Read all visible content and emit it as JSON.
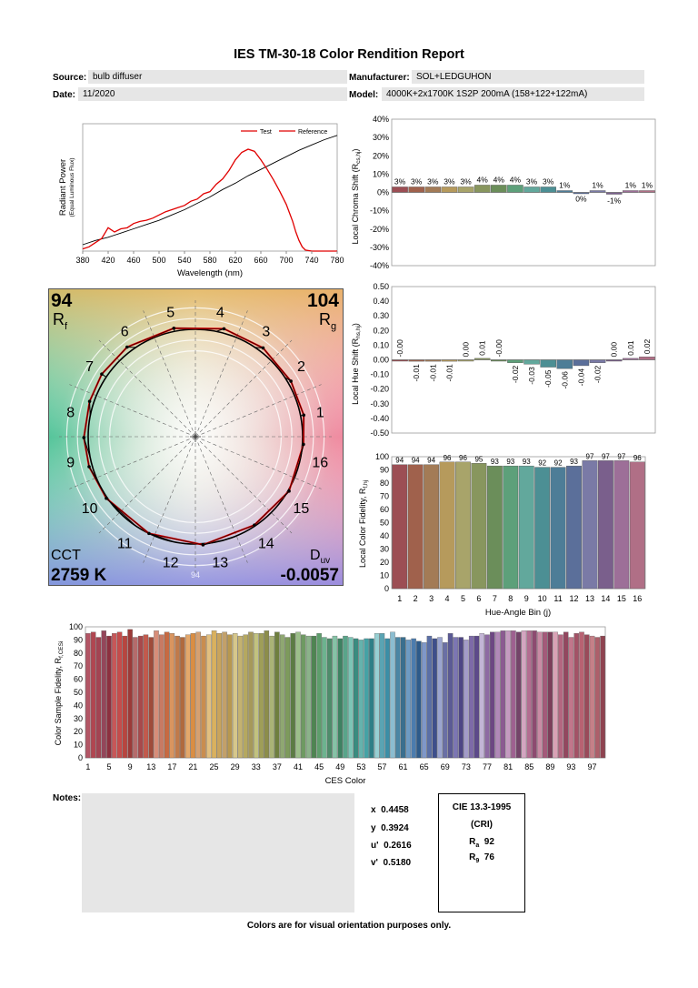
{
  "report": {
    "title": "IES TM-30-18 Color Rendition Report",
    "source_label": "Source:",
    "source_value": "bulb diffuser",
    "date_label": "Date:",
    "date_value": "11/2020",
    "manufacturer_label": "Manufacturer:",
    "manufacturer_value": "SOL+LEDGUHON",
    "model_label": "Model:",
    "model_value": "4000K+2x1700K 1S2P 200mA (158+122+122mA)",
    "notes_label": "Notes:",
    "footer": "Colors are for visual orientation purposes only."
  },
  "metrics": {
    "rf": "94",
    "rg": "104",
    "cct": "2759 K",
    "duv": "-0.0057",
    "rf_label": "R",
    "rf_sub": "f",
    "rg_label": "R",
    "rg_sub": "g",
    "cct_label": "CCT",
    "duv_label": "D",
    "duv_sub": "uv",
    "x_label": "x",
    "x": "0.4458",
    "y_label": "y",
    "y": "0.3924",
    "u_label": "u'",
    "u": "0.2616",
    "v_label": "v'",
    "v": "0.5180"
  },
  "cri": {
    "title": "CIE 13.3-1995",
    "subtitle": "(CRI)",
    "ra_label": "R",
    "ra_sub": "a",
    "ra": "92",
    "r9_label": "R",
    "r9_sub": "9",
    "r9": "76"
  },
  "colors": {
    "test": "#e00000",
    "reference": "#000000",
    "bins": [
      "#9c4e54",
      "#a0614c",
      "#a37b56",
      "#b69a5c",
      "#a8a46a",
      "#88965e",
      "#6b8e5a",
      "#5da07a",
      "#62a89c",
      "#4c8f94",
      "#4d7d97",
      "#5b6f9a",
      "#7a7aa6",
      "#7a5f8c",
      "#9d6f98",
      "#b06f86"
    ]
  },
  "chart_data": [
    {
      "type": "line",
      "name": "spd",
      "xlabel": "Wavelength (nm)",
      "ylabel": "Radiant Power",
      "ylabel2": "(Equal Luminous Flux)",
      "xlim": [
        380,
        780
      ],
      "xticks": [
        380,
        420,
        460,
        500,
        540,
        580,
        620,
        660,
        700,
        740,
        780
      ],
      "ylim": [
        0,
        1.2
      ],
      "series": [
        {
          "name": "Test",
          "x": [
            380,
            390,
            400,
            410,
            420,
            430,
            440,
            450,
            460,
            470,
            480,
            490,
            500,
            510,
            520,
            530,
            540,
            550,
            560,
            570,
            580,
            590,
            600,
            610,
            620,
            630,
            640,
            650,
            660,
            670,
            680,
            690,
            700,
            705,
            710,
            715,
            720,
            725,
            730,
            740,
            750,
            760,
            770,
            780
          ],
          "y": [
            0.02,
            0.04,
            0.08,
            0.12,
            0.22,
            0.18,
            0.21,
            0.22,
            0.26,
            0.28,
            0.29,
            0.31,
            0.34,
            0.37,
            0.39,
            0.41,
            0.43,
            0.47,
            0.49,
            0.54,
            0.56,
            0.63,
            0.68,
            0.76,
            0.86,
            0.93,
            0.96,
            0.94,
            0.86,
            0.77,
            0.67,
            0.56,
            0.44,
            0.36,
            0.28,
            0.18,
            0.1,
            0.04,
            0.01,
            0,
            0,
            0,
            0,
            0
          ]
        },
        {
          "name": "Reference",
          "x": [
            380,
            400,
            420,
            440,
            460,
            480,
            500,
            520,
            540,
            560,
            580,
            600,
            620,
            640,
            660,
            680,
            700,
            720,
            740,
            760,
            780
          ],
          "y": [
            0.06,
            0.1,
            0.13,
            0.17,
            0.21,
            0.25,
            0.29,
            0.34,
            0.39,
            0.45,
            0.51,
            0.58,
            0.64,
            0.71,
            0.77,
            0.83,
            0.89,
            0.95,
            1.0,
            1.05,
            1.09
          ]
        }
      ]
    },
    {
      "type": "bar",
      "name": "chroma-shift",
      "ylabel": "Local Chroma Shift (R",
      "ylabel_sub": "cs,hj",
      "ylim": [
        -40,
        40
      ],
      "yticks": [
        -40,
        -30,
        -20,
        -10,
        0,
        10,
        20,
        30,
        40
      ],
      "tick_format": "%",
      "categories": [
        1,
        2,
        3,
        4,
        5,
        6,
        7,
        8,
        9,
        10,
        11,
        12,
        13,
        14,
        15,
        16
      ],
      "values": [
        3,
        3,
        3,
        3,
        3,
        4,
        4,
        4,
        3,
        3,
        1,
        0,
        1,
        -1,
        1,
        1
      ],
      "labels": [
        "3%",
        "3%",
        "3%",
        "3%",
        "3%",
        "4%",
        "4%",
        "4%",
        "3%",
        "3%",
        "1%",
        "0%",
        "1%",
        "-1%",
        "1%",
        "1%"
      ]
    },
    {
      "type": "bar",
      "name": "hue-shift",
      "ylabel": "Local Hue Shift (R",
      "ylabel_sub": "hs,hj",
      "ylim": [
        -0.5,
        0.5
      ],
      "yticks": [
        -0.5,
        -0.4,
        -0.3,
        -0.2,
        -0.1,
        0,
        0.1,
        0.2,
        0.3,
        0.4,
        0.5
      ],
      "categories": [
        1,
        2,
        3,
        4,
        5,
        6,
        7,
        8,
        9,
        10,
        11,
        12,
        13,
        14,
        15,
        16
      ],
      "values": [
        0,
        -0.01,
        -0.01,
        -0.01,
        0,
        0.01,
        0,
        -0.02,
        -0.03,
        -0.05,
        -0.06,
        -0.04,
        -0.02,
        0,
        0.01,
        0.02
      ],
      "labels": [
        "-0.00",
        "-0.01",
        "-0.01",
        "-0.01",
        "0.00",
        "0.01",
        "-0.00",
        "-0.02",
        "-0.03",
        "-0.05",
        "-0.06",
        "-0.04",
        "-0.02",
        "0.00",
        "0.01",
        "0.02"
      ]
    },
    {
      "type": "bar",
      "name": "local-fidelity",
      "ylabel": "Local Color Fidelity, R",
      "ylabel_sub": "f,hj",
      "xlabel": "Hue-Angle Bin (j)",
      "ylim": [
        0,
        100
      ],
      "yticks": [
        0,
        10,
        20,
        30,
        40,
        50,
        60,
        70,
        80,
        90,
        100
      ],
      "categories": [
        1,
        2,
        3,
        4,
        5,
        6,
        7,
        8,
        9,
        10,
        11,
        12,
        13,
        14,
        15,
        16
      ],
      "values": [
        94,
        94,
        94,
        96,
        96,
        95,
        93,
        93,
        93,
        92,
        92,
        93,
        97,
        97,
        97,
        96
      ],
      "labels": [
        "94",
        "94",
        "94",
        "96",
        "96",
        "95",
        "93",
        "93",
        "93",
        "92",
        "92",
        "93",
        "97",
        "97",
        "97",
        "96"
      ]
    },
    {
      "type": "bar",
      "name": "ces-fidelity",
      "ylabel": "Color Sample Fidelity, R",
      "ylabel_sub": "f,CESi",
      "xlabel": "CES Color",
      "ylim": [
        0,
        100
      ],
      "yticks": [
        0,
        10,
        20,
        30,
        40,
        50,
        60,
        70,
        80,
        90,
        100
      ],
      "xticks": [
        1,
        5,
        9,
        13,
        17,
        21,
        25,
        29,
        33,
        37,
        41,
        45,
        49,
        53,
        57,
        61,
        65,
        69,
        73,
        77,
        81,
        85,
        89,
        93,
        97
      ],
      "values": [
        95,
        96,
        92,
        97,
        93,
        95,
        96,
        93,
        98,
        92,
        93,
        94,
        92,
        97,
        94,
        96,
        95,
        93,
        92,
        94,
        95,
        96,
        93,
        94,
        97,
        95,
        96,
        94,
        95,
        93,
        94,
        96,
        95,
        95,
        97,
        93,
        96,
        94,
        92,
        95,
        96,
        94,
        93,
        93,
        95,
        92,
        91,
        93,
        91,
        93,
        92,
        91,
        90,
        91,
        91,
        95,
        95,
        91,
        96,
        92,
        92,
        90,
        91,
        89,
        88,
        93,
        91,
        92,
        88,
        95,
        92,
        92,
        90,
        93,
        93,
        95,
        94,
        96,
        96,
        97,
        97,
        97,
        96,
        97,
        97,
        97,
        96,
        96,
        96,
        96,
        94,
        96,
        92,
        95,
        96,
        94,
        93,
        92,
        93
      ],
      "colors": [
        "#b35565",
        "#b14651",
        "#a34452",
        "#94465a",
        "#8d303f",
        "#c75758",
        "#c54c4b",
        "#b8453f",
        "#9c3a38",
        "#b56b6b",
        "#a8494b",
        "#c25a4d",
        "#a04b3a",
        "#d78d79",
        "#c87a63",
        "#c76a42",
        "#d9955f",
        "#c07a4a",
        "#b06a3e",
        "#e4a86b",
        "#d98e44",
        "#d6a070",
        "#c98d4f",
        "#e2bf7f",
        "#d9b15f",
        "#c9a45c",
        "#c2a06a",
        "#b8984f",
        "#d6c78b",
        "#c4b270",
        "#b5a860",
        "#a6995a",
        "#c2c27f",
        "#9f9e58",
        "#8c8d4a",
        "#aab377",
        "#6f7f3f",
        "#8fa772",
        "#7d9a5c",
        "#5c7c44",
        "#9cbf8a",
        "#6e9a62",
        "#8bb28a",
        "#4f8552",
        "#5e9e6c",
        "#6db38f",
        "#4e8d6b",
        "#86c2a6",
        "#3e8262",
        "#59a58a",
        "#7cc5b6",
        "#3a8c80",
        "#65b3ad",
        "#45a2a5",
        "#2f7f86",
        "#97cfd2",
        "#5aa4b3",
        "#3b8ea6",
        "#8bbdd0",
        "#4a86a4",
        "#3a6f8f",
        "#6d9bc4",
        "#4c7cae",
        "#2e5b8a",
        "#7f97c8",
        "#5a6fa6",
        "#3e4f8b",
        "#9aa4d0",
        "#6a6fa5",
        "#5b5a95",
        "#7c76b3",
        "#4e4685",
        "#a39bc8",
        "#7d6aa8",
        "#5d4a8a",
        "#c3b5d6",
        "#8e6aa3",
        "#6d4783",
        "#b189b8",
        "#8b5a91",
        "#c49ac0",
        "#9e6090",
        "#744469",
        "#d3a5c0",
        "#b36d91",
        "#8d4b70",
        "#c98aa4",
        "#a45a7a",
        "#7d3e5a",
        "#d9a1b5",
        "#b46680",
        "#93475f",
        "#c2768b",
        "#a35266",
        "#b86272",
        "#9a4a5a",
        "#c58088",
        "#ad5f6a",
        "#8f4350"
      ]
    }
  ],
  "gamut": {
    "rf_overlay": "94",
    "bin_numbers": [
      "1",
      "2",
      "3",
      "4",
      "5",
      "6",
      "7",
      "8",
      "9",
      "10",
      "11",
      "12",
      "13",
      "14",
      "15",
      "16"
    ],
    "test_r": [
      1.03,
      1.03,
      1.04,
      1.04,
      1.03,
      1.05,
      1.05,
      1.04,
      1.04,
      1.03,
      1.01,
      1.0,
      1.01,
      0.99,
      1.01,
      1.01
    ],
    "test_dhue": [
      0,
      -0.01,
      -0.01,
      -0.01,
      0,
      0.01,
      0,
      -0.02,
      -0.03,
      -0.05,
      -0.06,
      -0.04,
      -0.02,
      0,
      0.01,
      0.02
    ]
  }
}
